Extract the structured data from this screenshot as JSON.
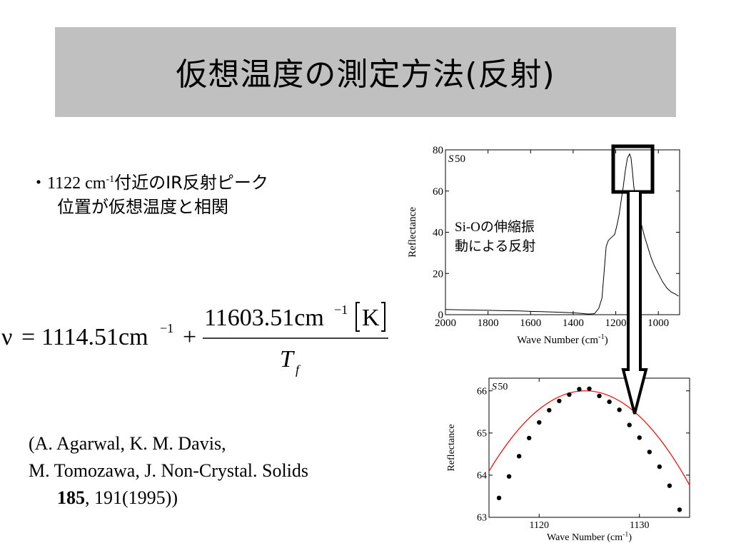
{
  "title": "仮想温度の測定方法(反射)",
  "bullet": {
    "marker": "・",
    "wavenumber": "1122 cm",
    "exponent": "-1",
    "line1_rest": "付近のIR反射ピーク",
    "line2": "位置が仮想温度と相関"
  },
  "formula": {
    "nu": "ν",
    "equals": "=",
    "constant": "1114.51cm",
    "constant_exp": "−1",
    "plus": "+",
    "numerator": "11603.51cm",
    "numerator_exp": "−1",
    "unit": "K",
    "denominator": "T",
    "denominator_sub": "f"
  },
  "reference": {
    "line1": "(A. Agarwal, K. M. Davis,",
    "line2": "M. Tomozawa, J. Non-Crystal. Solids",
    "volume": "185",
    "pages": ", 191(1995))"
  },
  "chart_data": [
    {
      "type": "line",
      "tag": "S50",
      "annotation": [
        "Si-Oの伸縮振",
        "動による反射"
      ],
      "xlabel": "Wave Number (cm",
      "xlabel_exp": "-1",
      "xlabel_end": ")",
      "ylabel": "Reflectance",
      "xlim": [
        2000,
        900
      ],
      "ylim": [
        0,
        80
      ],
      "xticks": [
        2000,
        1800,
        1600,
        1400,
        1200,
        1000
      ],
      "yticks": [
        0,
        20,
        40,
        60,
        80
      ],
      "x": [
        2000,
        1950,
        1900,
        1850,
        1800,
        1750,
        1700,
        1650,
        1600,
        1550,
        1500,
        1450,
        1400,
        1360,
        1330,
        1300,
        1280,
        1265,
        1255,
        1245,
        1235,
        1225,
        1215,
        1205,
        1195,
        1185,
        1175,
        1165,
        1155,
        1145,
        1135,
        1128,
        1122,
        1115,
        1105,
        1095,
        1080,
        1065,
        1050,
        1035,
        1020,
        1000,
        980,
        960,
        940,
        920,
        905
      ],
      "y": [
        2.5,
        2.4,
        2.3,
        2.2,
        2.1,
        2.0,
        1.9,
        1.8,
        1.6,
        1.5,
        1.3,
        1.1,
        0.9,
        0.6,
        0.3,
        0.5,
        3,
        8,
        20,
        33,
        36,
        37,
        38,
        39,
        43,
        48,
        55,
        62,
        70,
        76,
        78,
        76,
        70,
        62,
        56,
        50,
        44,
        38,
        33,
        28,
        24,
        20,
        16,
        13,
        11,
        10,
        9
      ]
    },
    {
      "type": "scatter",
      "tag": "S50",
      "xlabel": "Wave Number (cm",
      "xlabel_exp": "-1",
      "xlabel_end": ")",
      "ylabel": "Reflectance",
      "xlim": [
        1115,
        1135
      ],
      "ylim": [
        63,
        66.3
      ],
      "xticks": [
        1120,
        1130
      ],
      "yticks": [
        63,
        64,
        65,
        66
      ],
      "points_x": [
        1116,
        1117,
        1118,
        1119,
        1120,
        1121,
        1122,
        1123,
        1124,
        1125,
        1126,
        1127,
        1128,
        1129,
        1130,
        1131,
        1132,
        1133,
        1134
      ],
      "points_y": [
        63.46,
        63.97,
        64.45,
        64.88,
        65.25,
        65.54,
        65.76,
        65.91,
        66.04,
        66.05,
        65.88,
        65.74,
        65.55,
        65.19,
        64.89,
        64.55,
        64.2,
        63.75,
        63.18
      ],
      "fit_peak_x": 1124.6,
      "fit_peak_y": 66.0,
      "fit_curvature": 0.0207,
      "fit_color": "#ff0000"
    }
  ]
}
